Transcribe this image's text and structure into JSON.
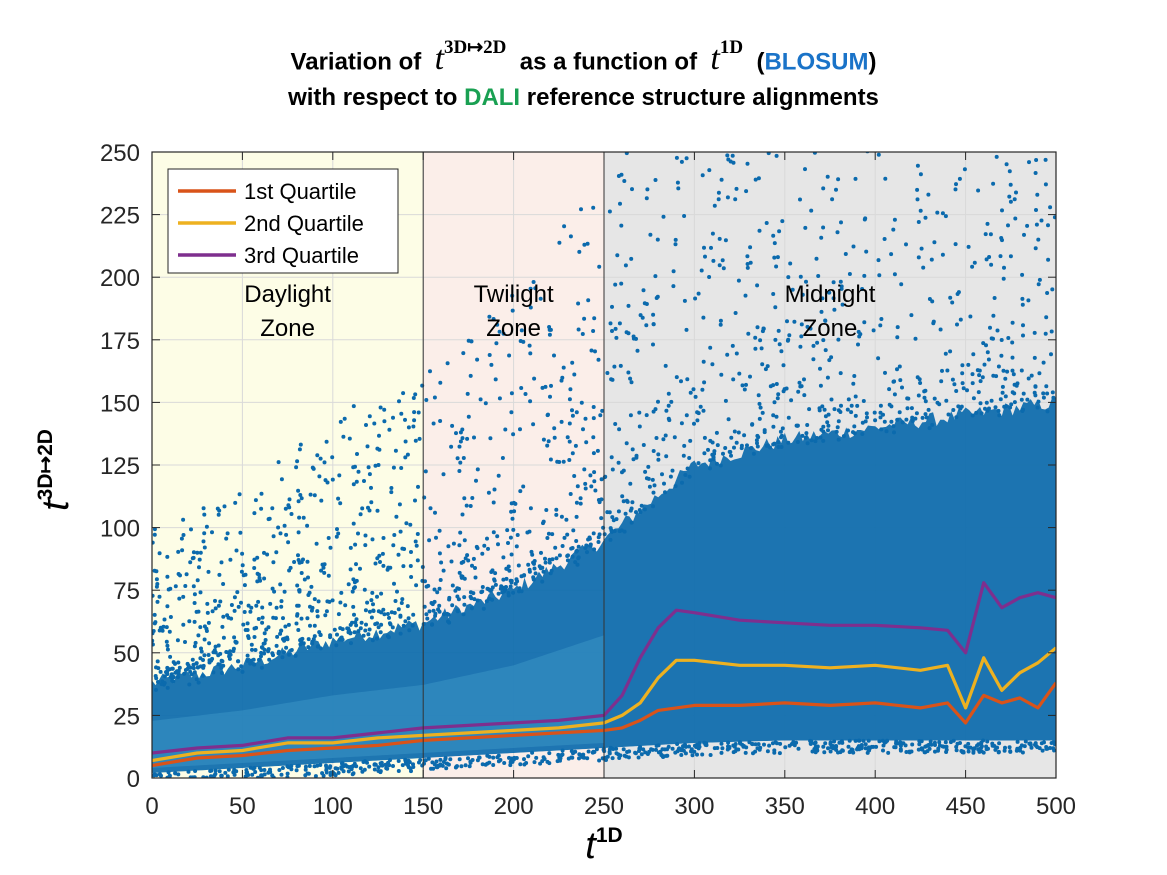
{
  "title": {
    "line1_part1": "Variation of",
    "line1_var1": "t",
    "line1_var1_sup": "3D↦2D",
    "line1_part2": "as a function of",
    "line1_var2": "t",
    "line1_var2_sup": "1D",
    "line1_paren_open": "(",
    "line1_blosum": "BLOSUM",
    "line1_paren_close": ")",
    "line2_part1": "with respect to",
    "line2_dali": "DALI",
    "line2_part2": "reference structure alignments"
  },
  "colors": {
    "scatter": "#0b6aad",
    "scatter_light": "#3a93c4",
    "q1": "#d95319",
    "q2": "#edb120",
    "q3": "#7e2f8e",
    "zone_daylight": "#fdfde6",
    "zone_twilight": "#fbeee9",
    "zone_midnight": "#e6e6e6",
    "accent_blue": "#1a73c8",
    "accent_green": "#19a052"
  },
  "zones": [
    {
      "line1": "Daylight",
      "line2": "Zone",
      "x_start": 0,
      "x_end": 150
    },
    {
      "line1": "Twilight",
      "line2": "Zone",
      "x_start": 150,
      "x_end": 250
    },
    {
      "line1": "Midnight",
      "line2": "Zone",
      "x_start": 250,
      "x_end": 500
    }
  ],
  "chart_data": {
    "type": "scatter",
    "title": "Variation of t^{3D↦2D} as a function of t^{1D} (BLOSUM) with respect to DALI reference structure alignments",
    "xlabel": "t",
    "xlabel_sup": "1D",
    "ylabel": "t",
    "ylabel_sup": "3D↦2D",
    "xlim": [
      0,
      500
    ],
    "ylim": [
      0,
      250
    ],
    "xticks": [
      0,
      50,
      100,
      150,
      200,
      250,
      300,
      350,
      400,
      450,
      500
    ],
    "yticks": [
      0,
      25,
      50,
      75,
      100,
      125,
      150,
      175,
      200,
      225,
      250
    ],
    "grid": true,
    "legend_position": "top-left",
    "scatter_envelope": {
      "description": "dense blue point cloud",
      "x": [
        0,
        50,
        100,
        150,
        200,
        250,
        300,
        350,
        400,
        450,
        500
      ],
      "upper": [
        38,
        45,
        55,
        62,
        75,
        95,
        125,
        135,
        140,
        145,
        150
      ],
      "lower": [
        2,
        4,
        6,
        8,
        10,
        12,
        14,
        15,
        15,
        15,
        15
      ]
    },
    "series": [
      {
        "name": "1st Quartile",
        "x": [
          0,
          25,
          50,
          75,
          100,
          125,
          150,
          175,
          200,
          225,
          250,
          260,
          270,
          280,
          290,
          300,
          325,
          350,
          375,
          400,
          425,
          440,
          450,
          460,
          470,
          480,
          490,
          500
        ],
        "y": [
          5,
          8,
          9,
          11,
          12,
          13,
          15,
          16,
          17,
          18,
          19,
          20,
          23,
          27,
          28,
          29,
          29,
          30,
          29,
          30,
          28,
          30,
          22,
          33,
          30,
          32,
          28,
          38
        ]
      },
      {
        "name": "2nd Quartile",
        "x": [
          0,
          25,
          50,
          75,
          100,
          125,
          150,
          175,
          200,
          225,
          250,
          260,
          270,
          280,
          290,
          300,
          325,
          350,
          375,
          400,
          425,
          440,
          450,
          460,
          470,
          480,
          490,
          500
        ],
        "y": [
          7,
          10,
          11,
          14,
          14,
          16,
          17,
          18,
          19,
          20,
          22,
          25,
          30,
          40,
          47,
          47,
          45,
          45,
          44,
          45,
          43,
          45,
          28,
          48,
          35,
          42,
          46,
          52
        ]
      },
      {
        "name": "3rd Quartile",
        "x": [
          0,
          25,
          50,
          75,
          100,
          125,
          150,
          175,
          200,
          225,
          250,
          260,
          270,
          280,
          290,
          300,
          325,
          350,
          375,
          400,
          425,
          440,
          450,
          460,
          470,
          480,
          490,
          500
        ],
        "y": [
          10,
          12,
          13,
          16,
          16,
          18,
          20,
          21,
          22,
          23,
          25,
          33,
          48,
          60,
          67,
          66,
          63,
          62,
          61,
          61,
          60,
          59,
          50,
          78,
          68,
          72,
          74,
          72
        ]
      }
    ]
  }
}
